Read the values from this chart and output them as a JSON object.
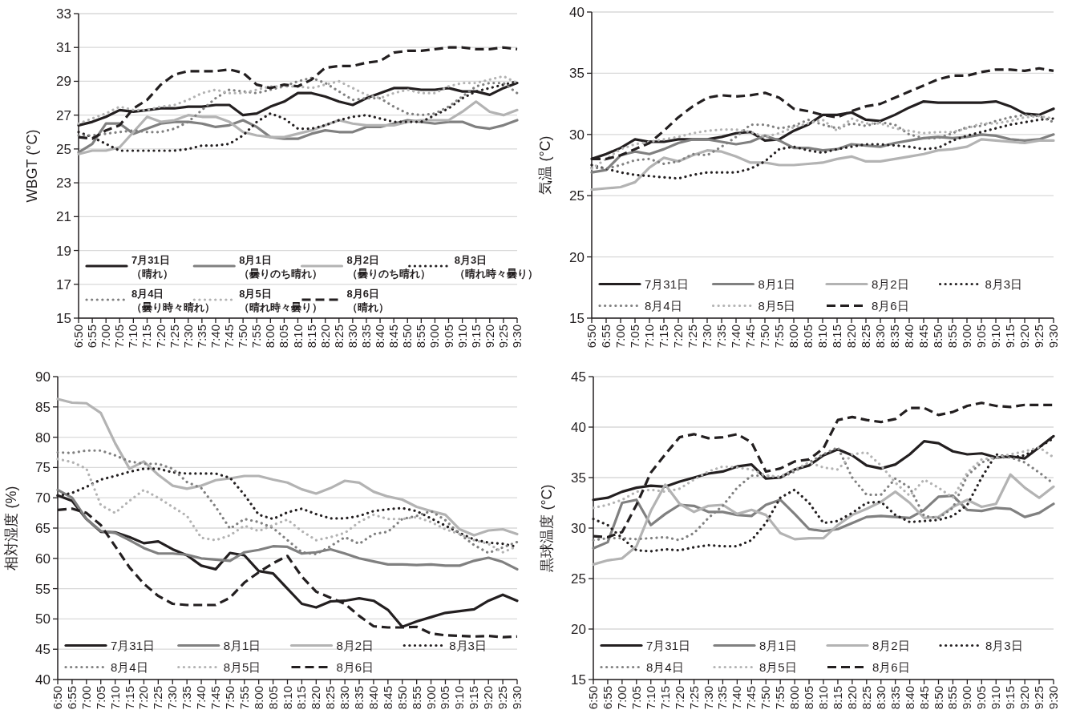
{
  "chart_data": [
    {
      "type": "line",
      "ylabel": "WBGT (°C)",
      "categories": [
        "6:50",
        "6:55",
        "7:00",
        "7:05",
        "7:10",
        "7:15",
        "7:20",
        "7:25",
        "7:30",
        "7:35",
        "7:40",
        "7:45",
        "7:50",
        "7:55",
        "8:00",
        "8:05",
        "8:10",
        "8:15",
        "8:20",
        "8:25",
        "8:30",
        "8:35",
        "8:40",
        "8:45",
        "8:50",
        "8:55",
        "9:00",
        "9:05",
        "9:10",
        "9:15",
        "9:20",
        "9:25",
        "9:30"
      ],
      "ylim": [
        15,
        33
      ],
      "yticks": [
        15,
        17,
        19,
        21,
        23,
        25,
        27,
        29,
        31,
        33
      ],
      "grid": "y",
      "legend": "bottom",
      "series": [
        {
          "name": "7月31日（晴れ）",
          "color": "#231f20",
          "line_style": "solid",
          "values": [
            26.4,
            26.6,
            26.9,
            27.3,
            27.2,
            27.3,
            27.4,
            27.4,
            27.5,
            27.5,
            27.6,
            27.6,
            27.0,
            27.1,
            27.5,
            27.8,
            28.3,
            28.3,
            28.1,
            27.8,
            27.6,
            28.0,
            28.3,
            28.6,
            28.6,
            28.5,
            28.5,
            28.6,
            28.4,
            28.4,
            28.2,
            28.6,
            28.9
          ]
        },
        {
          "name": "8月1日（曇りのち晴れ）",
          "color": "#808080",
          "line_style": "solid",
          "values": [
            24.8,
            25.3,
            26.5,
            26.5,
            25.9,
            26.2,
            26.5,
            26.6,
            26.6,
            26.5,
            26.3,
            26.4,
            26.7,
            26.3,
            25.7,
            25.6,
            25.6,
            25.9,
            26.1,
            26.0,
            26.0,
            26.3,
            26.3,
            26.5,
            26.7,
            26.6,
            26.5,
            26.6,
            26.6,
            26.3,
            26.2,
            26.4,
            26.7
          ]
        },
        {
          "name": "8月2日（曇りのち晴れ）",
          "color": "#b3b3b3",
          "line_style": "solid",
          "values": [
            24.7,
            24.9,
            24.9,
            25.1,
            26.0,
            26.9,
            26.6,
            26.7,
            27.0,
            26.9,
            26.9,
            26.6,
            26.0,
            25.8,
            25.7,
            25.7,
            25.9,
            26.1,
            26.4,
            26.7,
            26.5,
            26.4,
            26.4,
            26.4,
            26.6,
            26.7,
            26.7,
            26.7,
            27.2,
            27.8,
            27.2,
            27.0,
            27.3
          ]
        },
        {
          "name": "8月3日（晴れ時々曇り）",
          "color": "#231f20",
          "line_style": "dotted",
          "values": [
            26.0,
            25.7,
            25.3,
            24.9,
            24.9,
            24.9,
            24.9,
            24.9,
            25.0,
            25.2,
            25.2,
            25.3,
            25.8,
            26.6,
            27.1,
            26.8,
            26.2,
            26.2,
            26.4,
            26.7,
            26.9,
            27.0,
            26.8,
            26.6,
            26.6,
            26.6,
            27.0,
            27.4,
            28.0,
            28.4,
            28.6,
            28.8,
            29.0
          ]
        },
        {
          "name": "8月4日（曇り時々晴れ）",
          "color": "#808080",
          "line_style": "dotted",
          "values": [
            25.8,
            25.8,
            25.9,
            26.0,
            26.1,
            26.0,
            26.0,
            26.2,
            26.6,
            27.3,
            28.0,
            28.5,
            28.4,
            28.3,
            28.5,
            28.7,
            29.0,
            29.2,
            28.9,
            28.4,
            27.9,
            28.0,
            28.0,
            27.5,
            27.1,
            27.0,
            27.1,
            27.5,
            28.1,
            28.7,
            28.9,
            28.9,
            28.3
          ]
        },
        {
          "name": "8月5日（晴れ時々曇り）",
          "color": "#b3b3b3",
          "line_style": "dotted",
          "values": [
            26.5,
            26.8,
            27.1,
            27.5,
            27.3,
            27.3,
            27.5,
            27.6,
            27.9,
            28.3,
            28.5,
            28.3,
            28.3,
            28.5,
            28.7,
            28.7,
            28.7,
            28.6,
            28.8,
            29.0,
            28.6,
            28.2,
            28.0,
            28.3,
            28.5,
            28.3,
            28.3,
            28.7,
            28.9,
            28.9,
            29.1,
            29.3,
            28.9
          ]
        },
        {
          "name": "8月6日（晴れ）",
          "color": "#231f20",
          "line_style": "dashed",
          "values": [
            25.7,
            25.6,
            26.1,
            26.4,
            27.4,
            27.9,
            28.8,
            29.4,
            29.6,
            29.6,
            29.6,
            29.7,
            29.5,
            28.8,
            28.6,
            28.8,
            28.7,
            29.1,
            29.8,
            29.9,
            29.9,
            30.1,
            30.2,
            30.7,
            30.8,
            30.8,
            30.9,
            31.0,
            31.0,
            30.9,
            30.9,
            31.0,
            30.9
          ]
        }
      ]
    },
    {
      "type": "line",
      "ylabel": "気温 (°C)",
      "categories": [
        "6:50",
        "6:55",
        "7:00",
        "7:05",
        "7:10",
        "7:15",
        "7:20",
        "7:25",
        "7:30",
        "7:35",
        "7:40",
        "7:45",
        "7:50",
        "7:55",
        "8:00",
        "8:05",
        "8:10",
        "8:15",
        "8:20",
        "8:25",
        "8:30",
        "8:35",
        "8:40",
        "8:45",
        "8:50",
        "8:55",
        "9:00",
        "9:05",
        "9:10",
        "9:15",
        "9:20",
        "9:25",
        "9:30"
      ],
      "ylim": [
        15,
        40
      ],
      "yticks": [
        15,
        20,
        25,
        30,
        35,
        40
      ],
      "grid": "y",
      "legend": "bottom",
      "series": [
        {
          "name": "7月31日",
          "color": "#231f20",
          "line_style": "solid",
          "values": [
            28.0,
            28.4,
            28.9,
            29.6,
            29.4,
            29.4,
            29.6,
            29.6,
            29.6,
            29.8,
            30.1,
            30.2,
            29.5,
            29.6,
            30.3,
            30.8,
            31.6,
            31.6,
            31.8,
            31.2,
            31.1,
            31.6,
            32.2,
            32.7,
            32.6,
            32.6,
            32.6,
            32.6,
            32.7,
            32.3,
            31.7,
            31.6,
            32.1
          ]
        },
        {
          "name": "8月1日",
          "color": "#808080",
          "line_style": "solid",
          "values": [
            26.9,
            27.1,
            28.3,
            28.6,
            28.4,
            28.8,
            29.3,
            29.6,
            29.6,
            29.4,
            29.2,
            29.4,
            29.9,
            29.5,
            28.9,
            28.9,
            28.7,
            28.8,
            29.2,
            29.1,
            29.0,
            29.3,
            29.5,
            29.7,
            29.8,
            29.7,
            29.8,
            30.0,
            29.9,
            29.6,
            29.5,
            29.6,
            30.0
          ]
        },
        {
          "name": "8月2日",
          "color": "#b3b3b3",
          "line_style": "solid",
          "values": [
            25.5,
            25.6,
            25.7,
            26.1,
            27.3,
            28.1,
            27.8,
            28.3,
            28.7,
            28.6,
            28.2,
            27.7,
            27.7,
            27.5,
            27.5,
            27.6,
            27.7,
            28.0,
            28.2,
            27.8,
            27.8,
            28.0,
            28.2,
            28.4,
            28.7,
            28.8,
            29.0,
            29.6,
            29.5,
            29.4,
            29.3,
            29.5,
            29.5
          ]
        },
        {
          "name": "8月3日",
          "color": "#231f20",
          "line_style": "dotted",
          "values": [
            27.5,
            27.2,
            26.9,
            26.7,
            26.6,
            26.5,
            26.4,
            26.7,
            26.9,
            26.9,
            26.9,
            27.2,
            27.8,
            28.8,
            29.0,
            28.7,
            28.5,
            28.8,
            29.0,
            29.2,
            29.2,
            29.1,
            29.0,
            28.8,
            28.9,
            29.5,
            29.9,
            30.2,
            30.5,
            30.8,
            31.0,
            31.2,
            31.3
          ]
        },
        {
          "name": "8月4日",
          "color": "#808080",
          "line_style": "dotted",
          "values": [
            27.3,
            27.2,
            27.5,
            27.9,
            28.0,
            27.6,
            27.8,
            28.4,
            28.3,
            29.0,
            29.8,
            30.8,
            30.8,
            30.5,
            30.7,
            31.2,
            30.8,
            30.5,
            30.9,
            30.7,
            31.0,
            30.8,
            30.0,
            29.7,
            29.7,
            30.1,
            30.6,
            30.7,
            31.1,
            31.4,
            31.6,
            31.5,
            31.0
          ]
        },
        {
          "name": "8月5日",
          "color": "#b3b3b3",
          "line_style": "dotted",
          "values": [
            27.2,
            28.0,
            28.8,
            29.2,
            29.4,
            29.6,
            29.8,
            30.1,
            30.3,
            30.4,
            30.4,
            30.2,
            29.8,
            30.1,
            30.6,
            30.9,
            31.2,
            30.3,
            31.3,
            30.9,
            30.9,
            30.5,
            30.3,
            30.1,
            30.2,
            30.2,
            30.5,
            30.9,
            30.9,
            31.1,
            31.4,
            31.5,
            31.3
          ]
        },
        {
          "name": "8月6日",
          "color": "#231f20",
          "line_style": "dashed",
          "values": [
            28.0,
            28.0,
            28.3,
            28.8,
            29.3,
            30.3,
            31.4,
            32.3,
            33.0,
            33.2,
            33.1,
            33.2,
            33.4,
            33.0,
            32.1,
            31.9,
            31.6,
            31.4,
            31.9,
            32.3,
            32.5,
            33.0,
            33.5,
            34.0,
            34.5,
            34.8,
            34.8,
            35.1,
            35.3,
            35.3,
            35.2,
            35.4,
            35.2
          ]
        }
      ]
    },
    {
      "type": "line",
      "ylabel": "相対湿度 (%)",
      "categories": [
        "6:50",
        "6:55",
        "7:00",
        "7:05",
        "7:10",
        "7:15",
        "7:20",
        "7:25",
        "7:30",
        "7:35",
        "7:40",
        "7:45",
        "7:50",
        "7:55",
        "8:00",
        "8:05",
        "8:10",
        "8:15",
        "8:20",
        "8:25",
        "8:30",
        "8:35",
        "8:40",
        "8:45",
        "8:50",
        "8:55",
        "9:00",
        "9:05",
        "9:10",
        "9:15",
        "9:20",
        "9:25",
        "9:30"
      ],
      "ylim": [
        40,
        90
      ],
      "yticks": [
        40,
        45,
        50,
        55,
        60,
        65,
        70,
        75,
        80,
        85,
        90
      ],
      "grid": "y",
      "legend": "bottom",
      "series": [
        {
          "name": "7月31日",
          "color": "#231f20",
          "line_style": "solid",
          "values": [
            70.4,
            69.5,
            66.5,
            64.4,
            64.3,
            63.5,
            62.5,
            62.8,
            61.5,
            60.5,
            58.8,
            58.2,
            60.9,
            60.5,
            57.9,
            57.5,
            55.0,
            52.5,
            51.9,
            52.9,
            53.0,
            53.4,
            53.0,
            51.5,
            48.7,
            49.6,
            50.3,
            51.0,
            51.3,
            51.6,
            53.0,
            54.0,
            53.0
          ]
        },
        {
          "name": "8月1日",
          "color": "#808080",
          "line_style": "solid",
          "values": [
            71.3,
            70.0,
            66.5,
            64.5,
            64.2,
            63.0,
            61.7,
            60.8,
            60.8,
            60.6,
            60.0,
            59.8,
            59.6,
            61.0,
            61.4,
            62.0,
            61.9,
            60.8,
            61.0,
            61.5,
            60.8,
            60.0,
            59.5,
            59.0,
            59.0,
            58.9,
            59.0,
            58.8,
            58.8,
            59.6,
            60.1,
            59.4,
            58.2
          ]
        },
        {
          "name": "8月2日",
          "color": "#b3b3b3",
          "line_style": "solid",
          "values": [
            86.3,
            85.7,
            85.6,
            84.0,
            79.0,
            74.8,
            76.0,
            73.8,
            72.0,
            71.5,
            72.0,
            72.9,
            73.2,
            73.6,
            73.6,
            73.0,
            72.5,
            71.4,
            70.7,
            71.6,
            72.8,
            72.5,
            71.0,
            70.2,
            69.7,
            68.5,
            67.8,
            67.2,
            64.8,
            63.8,
            64.6,
            64.8,
            64.0
          ]
        },
        {
          "name": "8月3日",
          "color": "#231f20",
          "line_style": "dotted",
          "values": [
            70.3,
            70.8,
            71.8,
            73.0,
            73.6,
            74.3,
            74.8,
            74.8,
            74.2,
            74.0,
            74.0,
            74.0,
            73.3,
            70.5,
            67.2,
            66.5,
            67.6,
            68.2,
            67.3,
            66.6,
            66.6,
            67.0,
            67.8,
            68.1,
            68.3,
            67.8,
            66.6,
            65.4,
            64.2,
            63.1,
            62.6,
            62.4,
            61.9
          ]
        },
        {
          "name": "8月4日",
          "color": "#808080",
          "line_style": "dotted",
          "values": [
            77.5,
            77.4,
            77.8,
            77.8,
            77.0,
            76.0,
            75.6,
            75.6,
            74.8,
            72.6,
            71.6,
            68.5,
            64.9,
            66.5,
            66.0,
            65.0,
            63.0,
            61.0,
            60.7,
            62.0,
            63.5,
            62.4,
            64.0,
            64.4,
            66.5,
            67.0,
            67.8,
            66.3,
            64.0,
            62.2,
            60.9,
            61.8,
            62.7
          ]
        },
        {
          "name": "8月5日",
          "color": "#b3b3b3",
          "line_style": "dotted",
          "values": [
            76.4,
            75.9,
            74.8,
            68.8,
            67.5,
            69.5,
            71.3,
            70.0,
            68.5,
            67.0,
            63.4,
            63.0,
            63.8,
            65.4,
            64.5,
            65.5,
            66.4,
            64.5,
            63.0,
            63.5,
            64.2,
            66.0,
            67.2,
            66.5,
            66.5,
            66.8,
            66.0,
            64.8,
            64.0,
            63.0,
            62.4,
            61.0,
            62.0
          ]
        },
        {
          "name": "8月6日",
          "color": "#231f20",
          "line_style": "dashed",
          "values": [
            68.0,
            68.2,
            67.5,
            65.5,
            62.0,
            58.5,
            55.8,
            53.8,
            52.5,
            52.3,
            52.3,
            52.3,
            53.5,
            56.0,
            57.7,
            59.2,
            60.4,
            57.0,
            54.5,
            53.5,
            52.5,
            50.5,
            48.8,
            48.6,
            48.6,
            48.7,
            47.6,
            47.3,
            47.2,
            47.1,
            47.2,
            47.0,
            47.1
          ]
        }
      ]
    },
    {
      "type": "line",
      "ylabel": "黒球温度 (°C)",
      "categories": [
        "6:50",
        "6:55",
        "7:00",
        "7:05",
        "7:10",
        "7:15",
        "7:20",
        "7:25",
        "7:30",
        "7:35",
        "7:40",
        "7:45",
        "7:50",
        "7:55",
        "8:00",
        "8:05",
        "8:10",
        "8:15",
        "8:20",
        "8:25",
        "8:30",
        "8:35",
        "8:40",
        "8:45",
        "8:50",
        "8:55",
        "9:00",
        "9:05",
        "9:10",
        "9:15",
        "9:20",
        "9:25",
        "9:30"
      ],
      "ylim": [
        15,
        45
      ],
      "yticks": [
        15,
        20,
        25,
        30,
        35,
        40,
        45
      ],
      "grid": "y",
      "legend": "bottom",
      "series": [
        {
          "name": "7月31日",
          "color": "#231f20",
          "line_style": "solid",
          "values": [
            32.8,
            33.0,
            33.6,
            34.0,
            34.2,
            34.1,
            34.6,
            35.0,
            35.4,
            35.6,
            36.1,
            36.3,
            34.9,
            35.0,
            35.8,
            36.2,
            37.2,
            37.8,
            37.2,
            36.2,
            35.9,
            36.3,
            37.3,
            38.6,
            38.4,
            37.6,
            37.3,
            37.4,
            37.0,
            37.1,
            36.9,
            38.0,
            39.1
          ]
        },
        {
          "name": "8月1日",
          "color": "#808080",
          "line_style": "solid",
          "values": [
            28.0,
            28.6,
            32.5,
            32.8,
            30.3,
            31.4,
            32.3,
            32.2,
            31.6,
            31.6,
            31.3,
            31.2,
            32.3,
            32.8,
            31.4,
            29.9,
            29.7,
            29.9,
            30.5,
            31.1,
            31.2,
            31.1,
            31.0,
            31.8,
            33.1,
            33.2,
            31.8,
            31.7,
            32.0,
            31.9,
            31.1,
            31.5,
            32.4
          ]
        },
        {
          "name": "8月2日",
          "color": "#b3b3b3",
          "line_style": "solid",
          "values": [
            26.4,
            26.8,
            27.0,
            28.2,
            31.7,
            34.3,
            32.4,
            31.6,
            32.2,
            32.3,
            31.4,
            31.8,
            31.3,
            29.5,
            28.9,
            29.0,
            29.0,
            30.3,
            31.3,
            31.9,
            32.6,
            33.6,
            32.5,
            31.0,
            31.1,
            32.1,
            32.8,
            32.1,
            32.4,
            35.3,
            34.0,
            33.0,
            34.1
          ]
        },
        {
          "name": "8月3日",
          "color": "#231f20",
          "line_style": "dotted",
          "values": [
            30.9,
            30.3,
            29.0,
            27.8,
            27.7,
            27.9,
            27.8,
            28.1,
            28.3,
            28.2,
            28.2,
            28.8,
            30.5,
            33.0,
            33.8,
            32.5,
            30.5,
            30.7,
            31.5,
            32.5,
            32.6,
            31.3,
            30.6,
            30.7,
            30.8,
            31.2,
            32.3,
            35.0,
            37.3,
            37.0,
            37.2,
            38.0,
            38.9
          ]
        },
        {
          "name": "8月4日",
          "color": "#808080",
          "line_style": "dotted",
          "values": [
            28.8,
            29.0,
            29.0,
            28.9,
            29.0,
            29.1,
            28.8,
            29.5,
            31.0,
            32.2,
            34.0,
            35.2,
            35.2,
            35.0,
            35.6,
            36.5,
            37.3,
            38.0,
            35.0,
            33.3,
            33.3,
            34.9,
            34.0,
            31.2,
            31.0,
            32.0,
            35.2,
            36.5,
            37.0,
            37.0,
            36.5,
            35.5,
            34.4
          ]
        },
        {
          "name": "8月5日",
          "color": "#b3b3b3",
          "line_style": "dotted",
          "values": [
            32.0,
            32.3,
            32.8,
            33.6,
            33.8,
            33.6,
            33.9,
            34.8,
            35.6,
            36.1,
            36.0,
            35.8,
            35.2,
            35.1,
            35.8,
            36.5,
            36.0,
            35.8,
            37.3,
            37.5,
            36.2,
            34.5,
            33.2,
            34.8,
            34.0,
            33.0,
            35.5,
            36.8,
            37.0,
            37.3,
            37.6,
            38.0,
            37.0
          ]
        },
        {
          "name": "8月6日",
          "color": "#231f20",
          "line_style": "dashed",
          "values": [
            29.2,
            29.1,
            29.6,
            32.3,
            35.5,
            37.3,
            39.0,
            39.3,
            38.9,
            39.0,
            39.3,
            38.5,
            35.6,
            35.9,
            36.6,
            36.8,
            37.9,
            40.7,
            41.0,
            40.7,
            40.5,
            40.8,
            41.9,
            41.9,
            41.2,
            41.5,
            42.1,
            42.4,
            42.1,
            42.0,
            42.2,
            42.2,
            42.2
          ]
        }
      ]
    }
  ]
}
